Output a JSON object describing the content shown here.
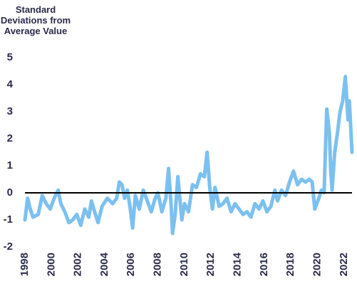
{
  "chart_data": {
    "type": "line",
    "y_label": "Standard Deviations from Average Value",
    "x": [
      1998.0,
      1998.2,
      1998.4,
      1998.6,
      1999.0,
      1999.3,
      1999.6,
      1999.9,
      2000.2,
      2000.5,
      2000.7,
      2001.0,
      2001.3,
      2001.6,
      2001.9,
      2002.2,
      2002.5,
      2002.8,
      2003.0,
      2003.3,
      2003.5,
      2003.8,
      2004.2,
      2004.6,
      2004.9,
      2005.1,
      2005.3,
      2005.5,
      2005.7,
      2005.9,
      2006.1,
      2006.3,
      2006.6,
      2006.9,
      2007.2,
      2007.5,
      2007.8,
      2008.0,
      2008.3,
      2008.6,
      2008.8,
      2009.0,
      2009.1,
      2009.3,
      2009.5,
      2009.8,
      2010.0,
      2010.3,
      2010.6,
      2010.9,
      2011.2,
      2011.5,
      2011.7,
      2011.9,
      2012.1,
      2012.3,
      2012.6,
      2012.9,
      2013.2,
      2013.5,
      2013.8,
      2014.1,
      2014.4,
      2014.7,
      2015.0,
      2015.3,
      2015.6,
      2015.9,
      2016.2,
      2016.5,
      2016.8,
      2017.0,
      2017.3,
      2017.6,
      2017.9,
      2018.2,
      2018.5,
      2018.8,
      2019.1,
      2019.4,
      2019.6,
      2019.8,
      2020.1,
      2020.3,
      2020.5,
      2020.7,
      2020.9,
      2021.0,
      2021.1,
      2021.3,
      2021.5,
      2021.7,
      2021.9,
      2022.1,
      2022.3,
      2022.4,
      2022.6
    ],
    "series": [
      {
        "color": "#7cc0f0",
        "values": [
          -1.0,
          -0.2,
          -0.6,
          -0.9,
          -0.8,
          -0.1,
          -0.4,
          -0.6,
          -0.2,
          0.1,
          -0.4,
          -0.7,
          -1.1,
          -1.0,
          -0.8,
          -1.2,
          -0.6,
          -0.9,
          -0.3,
          -0.8,
          -1.1,
          -0.5,
          -0.2,
          -0.4,
          -0.2,
          0.4,
          0.3,
          -0.2,
          0.1,
          -0.5,
          -1.3,
          -0.1,
          -0.6,
          0.1,
          -0.3,
          -0.7,
          -0.2,
          0.0,
          -0.7,
          -0.2,
          0.9,
          -0.5,
          -1.5,
          -0.8,
          0.6,
          -1.0,
          -0.4,
          -0.7,
          0.3,
          0.2,
          0.7,
          0.6,
          1.5,
          0.2,
          -0.6,
          0.2,
          -0.5,
          -0.4,
          -0.2,
          -0.7,
          -0.4,
          -0.6,
          -0.8,
          -0.7,
          -0.9,
          -0.4,
          -0.6,
          -0.3,
          -0.7,
          -0.5,
          0.1,
          -0.3,
          0.1,
          -0.1,
          0.4,
          0.8,
          0.3,
          0.5,
          0.4,
          0.5,
          0.4,
          -0.6,
          -0.2,
          0.1,
          0.0,
          3.1,
          2.2,
          0.8,
          0.1,
          1.5,
          2.2,
          3.0,
          3.4,
          4.3,
          2.7,
          3.4,
          1.5
        ]
      }
    ],
    "xlim": [
      1998,
      2022.6
    ],
    "xticks": [
      1998,
      2000,
      2002,
      2004,
      2006,
      2008,
      2010,
      2012,
      2014,
      2016,
      2018,
      2020,
      2022
    ],
    "ylim": [
      -2,
      5
    ],
    "yticks": [
      -2,
      -1,
      0,
      1,
      2,
      3,
      4,
      5
    ],
    "zero_line": true
  }
}
